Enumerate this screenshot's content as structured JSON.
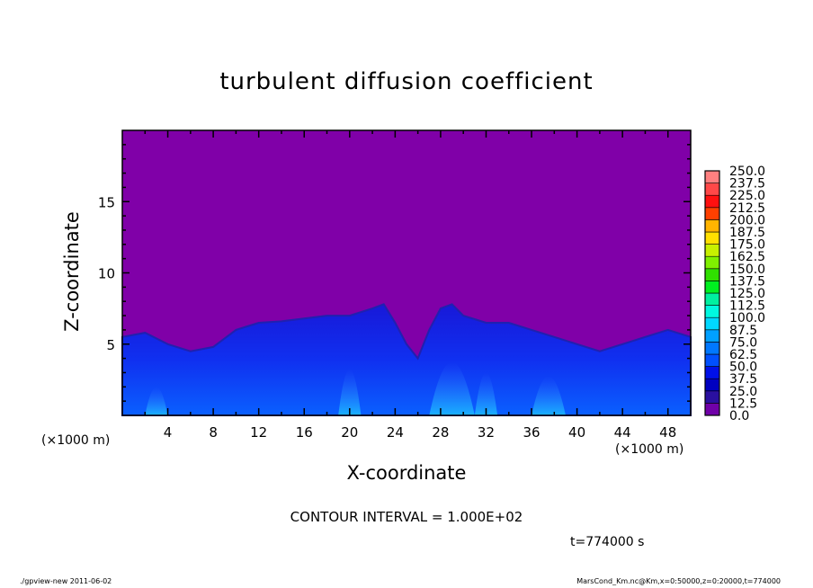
{
  "chart_data": {
    "type": "heatmap",
    "title": "turbulent diffusion coefficient",
    "xlabel": "X-coordinate",
    "ylabel": "Z-coordinate",
    "x_unit_label": "(×1000 m)",
    "xlim": [
      0,
      50
    ],
    "ylim": [
      0,
      20
    ],
    "x_ticks": [
      4,
      8,
      12,
      16,
      20,
      24,
      28,
      32,
      36,
      40,
      44,
      48
    ],
    "y_ticks": [
      5,
      10,
      15
    ],
    "colorbar": {
      "levels": [
        "0.0",
        "12.5",
        "25.0",
        "37.5",
        "50.0",
        "62.5",
        "75.0",
        "87.5",
        "100.0",
        "112.5",
        "125.0",
        "137.5",
        "150.0",
        "162.5",
        "175.0",
        "187.5",
        "200.0",
        "212.5",
        "225.0",
        "237.5",
        "250.0"
      ],
      "colors": [
        "#7000a8",
        "#2a10a0",
        "#0000c0",
        "#0010e8",
        "#0030ff",
        "#0050ff",
        "#0078ff",
        "#00a0ff",
        "#00d8ff",
        "#00f8e0",
        "#00f0a0",
        "#00f060",
        "#00f020",
        "#30e000",
        "#80f000",
        "#c8f000",
        "#ffe000",
        "#ffb400",
        "#ff8000",
        "#ff4000",
        "#ff1010",
        "#ff4848",
        "#ff8080"
      ]
    },
    "background_value": 0.0,
    "turbulent_layer_top_km": {
      "x": [
        0,
        2,
        4,
        6,
        8,
        10,
        12,
        14,
        16,
        18,
        20,
        22,
        23,
        24,
        25,
        26,
        27,
        28,
        29,
        30,
        32,
        34,
        36,
        38,
        40,
        42,
        44,
        46,
        48,
        50
      ],
      "z": [
        5.5,
        5.8,
        5.0,
        4.5,
        4.8,
        6.0,
        6.5,
        6.6,
        6.8,
        7.0,
        7.0,
        7.5,
        7.8,
        6.5,
        5.0,
        4.0,
        6.0,
        7.5,
        7.8,
        7.0,
        6.5,
        6.5,
        6.0,
        5.5,
        5.0,
        4.5,
        5.0,
        5.5,
        6.0,
        5.5
      ]
    },
    "contour_interval": "CONTOUR INTERVAL = 1.000E+02",
    "time_label": "t=774000 s"
  },
  "footer": {
    "left": "./gpview-new  2011-06-02",
    "right": "MarsCond_Km.nc@Km,x=0:50000,z=0:20000,t=774000"
  }
}
